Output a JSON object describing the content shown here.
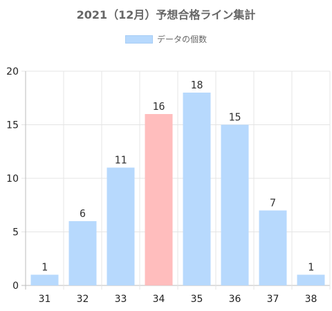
{
  "chart_data": {
    "type": "bar",
    "title": "2021（12月）予想合格ライン集計",
    "legend_position": "top",
    "grid": true,
    "categories": [
      "31",
      "32",
      "33",
      "34",
      "35",
      "36",
      "37",
      "38"
    ],
    "series": [
      {
        "name": "データの個数",
        "values": [
          1,
          6,
          11,
          16,
          18,
          15,
          7,
          1
        ],
        "color": "#b7d9fd",
        "highlight": {
          "category": "34",
          "color": "#ffbdbd"
        }
      }
    ],
    "xlabel": "",
    "ylabel": "",
    "ylim": [
      0,
      20
    ],
    "yticks": [
      0,
      5,
      10,
      15,
      20
    ]
  }
}
